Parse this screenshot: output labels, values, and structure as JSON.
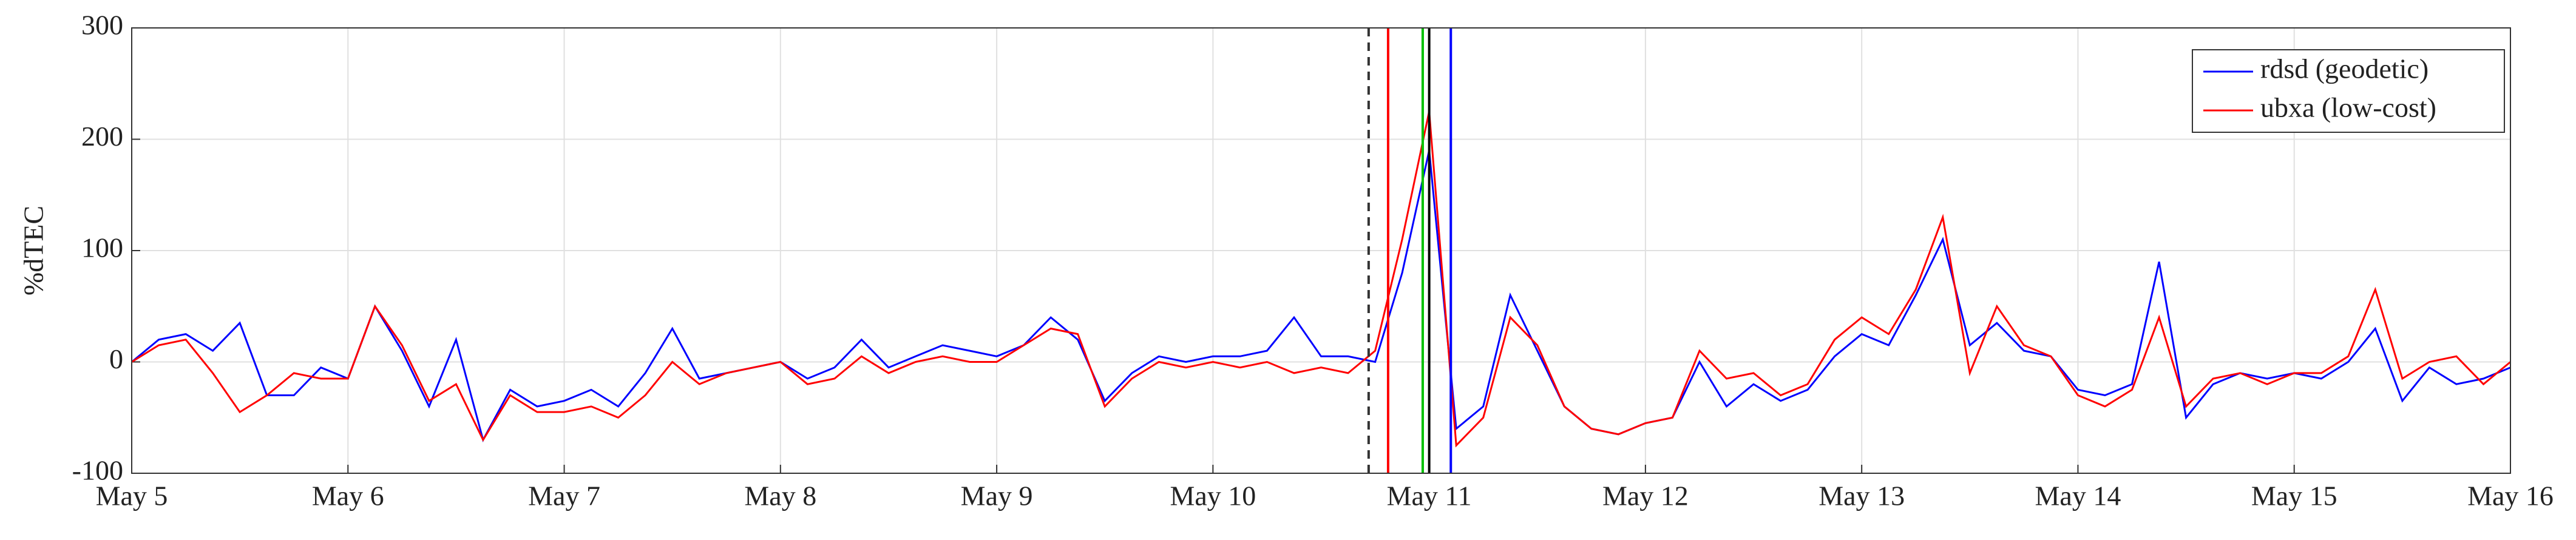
{
  "chart_data": {
    "type": "line",
    "y_label": "%dTEC",
    "x": [
      5,
      5.125,
      5.25,
      5.375,
      5.5,
      5.625,
      5.75,
      5.875,
      6,
      6.125,
      6.25,
      6.375,
      6.5,
      6.625,
      6.75,
      6.875,
      7,
      7.125,
      7.25,
      7.375,
      7.5,
      7.625,
      7.75,
      7.875,
      8,
      8.125,
      8.25,
      8.375,
      8.5,
      8.625,
      8.75,
      8.875,
      9,
      9.125,
      9.25,
      9.375,
      9.5,
      9.625,
      9.75,
      9.875,
      10,
      10.125,
      10.25,
      10.375,
      10.5,
      10.625,
      10.75,
      10.875,
      11,
      11.125,
      11.25,
      11.375,
      11.5,
      11.625,
      11.75,
      11.875,
      12,
      12.125,
      12.25,
      12.375,
      12.5,
      12.625,
      12.75,
      12.875,
      13,
      13.125,
      13.25,
      13.375,
      13.5,
      13.625,
      13.75,
      13.875,
      14,
      14.125,
      14.25,
      14.375,
      14.5,
      14.625,
      14.75,
      14.875,
      15,
      15.125,
      15.25,
      15.375,
      15.5,
      15.625,
      15.75,
      15.875,
      16
    ],
    "series": [
      {
        "name": "rdsd (geodetic)",
        "color": "#0000ff",
        "values": [
          0,
          20,
          25,
          10,
          35,
          -30,
          -30,
          -5,
          -15,
          50,
          10,
          -40,
          20,
          -70,
          -25,
          -40,
          -35,
          -25,
          -40,
          -10,
          30,
          -15,
          -10,
          -5,
          0,
          -15,
          -5,
          20,
          -5,
          5,
          15,
          10,
          5,
          15,
          40,
          20,
          -35,
          -10,
          5,
          0,
          5,
          5,
          10,
          40,
          5,
          5,
          0,
          80,
          190,
          -60,
          -40,
          60,
          10,
          -40,
          -60,
          -65,
          -55,
          -50,
          0,
          -40,
          -20,
          -35,
          -25,
          5,
          25,
          15,
          60,
          110,
          15,
          35,
          10,
          5,
          -25,
          -30,
          -20,
          90,
          -50,
          -20,
          -10,
          -15,
          -10,
          -15,
          0,
          30,
          -35,
          -5,
          -20,
          -15,
          -5
        ]
      },
      {
        "name": "ubxa (low-cost)",
        "color": "#ff0000",
        "values": [
          0,
          15,
          20,
          -10,
          -45,
          -30,
          -10,
          -15,
          -15,
          50,
          15,
          -35,
          -20,
          -70,
          -30,
          -45,
          -45,
          -40,
          -50,
          -30,
          0,
          -20,
          -10,
          -5,
          0,
          -20,
          -15,
          5,
          -10,
          0,
          5,
          0,
          0,
          15,
          30,
          25,
          -40,
          -15,
          0,
          -5,
          0,
          -5,
          0,
          -10,
          -5,
          -10,
          10,
          110,
          225,
          -75,
          -50,
          40,
          15,
          -40,
          -60,
          -65,
          -55,
          -50,
          10,
          -15,
          -10,
          -30,
          -20,
          20,
          40,
          25,
          65,
          130,
          -10,
          50,
          15,
          5,
          -30,
          -40,
          -25,
          40,
          -40,
          -15,
          -10,
          -20,
          -10,
          -10,
          5,
          65,
          -15,
          0,
          5,
          -20,
          0
        ]
      }
    ],
    "vlines": [
      {
        "x": 10.72,
        "color": "#333333",
        "dashed": true
      },
      {
        "x": 10.81,
        "color": "#ff0000",
        "dashed": false
      },
      {
        "x": 10.97,
        "color": "#00c000",
        "dashed": false
      },
      {
        "x": 11.0,
        "color": "#000000",
        "dashed": false
      },
      {
        "x": 11.1,
        "color": "#0000ff",
        "dashed": false
      }
    ],
    "xlim": [
      5,
      16
    ],
    "xticks": [
      {
        "value": 5,
        "label": "May 5"
      },
      {
        "value": 6,
        "label": "May 6"
      },
      {
        "value": 7,
        "label": "May 7"
      },
      {
        "value": 8,
        "label": "May 8"
      },
      {
        "value": 9,
        "label": "May 9"
      },
      {
        "value": 10,
        "label": "May 10"
      },
      {
        "value": 11,
        "label": "May 11"
      },
      {
        "value": 12,
        "label": "May 12"
      },
      {
        "value": 13,
        "label": "May 13"
      },
      {
        "value": 14,
        "label": "May 14"
      },
      {
        "value": 15,
        "label": "May 15"
      },
      {
        "value": 16,
        "label": "May 16"
      }
    ],
    "ylim": [
      -100,
      300
    ],
    "yticks": [
      -100,
      0,
      100,
      200,
      300
    ],
    "grid": true,
    "legend": "top-right"
  }
}
